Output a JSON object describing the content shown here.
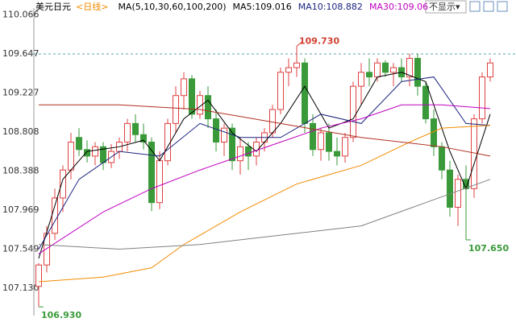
{
  "chart_data": {
    "type": "candlestick",
    "symbol": "美元日元",
    "period": "<日线>",
    "ma_title": "MA(5,10,30,60,100,200)",
    "ma_readouts": [
      {
        "label": "MA5:109.016",
        "color": "#000000"
      },
      {
        "label": "MA10:108.882",
        "color": "#1a237e"
      },
      {
        "label": "MA30:109.06",
        "color": "#c000c0"
      }
    ],
    "button": "不显示▾",
    "ylim": [
      106.88,
      110.14
    ],
    "yticks": [
      110.066,
      109.647,
      109.227,
      108.808,
      108.388,
      107.969,
      107.549,
      {
        "value": 107.13,
        "label": "107.130"
      }
    ],
    "dashed_line": 109.647,
    "up_color": "#e04040",
    "down_color": "#3a9a3a",
    "candles": {
      "open": [
        107.15,
        107.38,
        107.72,
        108.1,
        108.4,
        108.75,
        108.62,
        108.55,
        108.65,
        108.48,
        108.6,
        108.7,
        108.9,
        108.78,
        108.7,
        108.05,
        108.5,
        108.9,
        109.2,
        109.38,
        109.0,
        109.2,
        108.95,
        108.7,
        108.85,
        108.5,
        108.65,
        108.55,
        108.7,
        108.8,
        109.05,
        109.45,
        109.5,
        109.55,
        108.9,
        108.62,
        108.8,
        108.6,
        108.55,
        108.75,
        109.3,
        109.45,
        109.4,
        109.55,
        109.45,
        109.5,
        109.4,
        109.6,
        109.3,
        108.95,
        108.65,
        108.4,
        108.0,
        108.3,
        108.2,
        108.95,
        109.4
      ],
      "high": [
        107.4,
        107.8,
        108.2,
        108.45,
        108.8,
        108.85,
        108.72,
        108.7,
        108.7,
        108.68,
        108.75,
        108.95,
        109.0,
        108.9,
        108.75,
        108.6,
        108.95,
        109.3,
        109.45,
        109.42,
        109.25,
        109.3,
        109.05,
        108.9,
        108.9,
        108.75,
        108.7,
        108.75,
        108.85,
        109.1,
        109.5,
        109.6,
        109.73,
        109.6,
        109.0,
        108.85,
        108.9,
        108.75,
        108.8,
        109.35,
        109.55,
        109.6,
        109.6,
        109.58,
        109.55,
        109.6,
        109.65,
        109.65,
        109.35,
        109.05,
        108.7,
        108.5,
        108.35,
        108.45,
        109.0,
        109.45,
        109.6
      ],
      "low": [
        106.93,
        107.3,
        107.65,
        107.95,
        108.3,
        108.55,
        108.48,
        108.45,
        108.4,
        108.42,
        108.52,
        108.6,
        108.7,
        108.62,
        107.96,
        107.98,
        108.45,
        108.8,
        109.05,
        108.95,
        108.95,
        108.85,
        108.6,
        108.55,
        108.4,
        108.35,
        108.4,
        108.45,
        108.6,
        108.75,
        109.0,
        109.3,
        109.4,
        108.8,
        108.55,
        108.5,
        108.5,
        108.45,
        108.48,
        108.7,
        109.1,
        109.3,
        109.35,
        109.4,
        109.3,
        109.35,
        109.3,
        109.2,
        108.9,
        108.55,
        108.3,
        107.9,
        107.8,
        107.65,
        108.1,
        108.9,
        109.35
      ],
      "close": [
        107.38,
        107.72,
        108.1,
        108.4,
        108.7,
        108.62,
        108.55,
        108.65,
        108.48,
        108.6,
        108.7,
        108.9,
        108.78,
        108.7,
        108.05,
        108.5,
        108.9,
        109.2,
        109.38,
        109.0,
        109.2,
        108.95,
        108.7,
        108.85,
        108.5,
        108.65,
        108.55,
        108.7,
        108.8,
        109.05,
        109.45,
        109.5,
        109.55,
        108.9,
        108.62,
        108.8,
        108.6,
        108.55,
        108.75,
        109.3,
        109.45,
        109.4,
        109.55,
        109.45,
        109.5,
        109.4,
        109.6,
        109.3,
        108.95,
        108.65,
        108.4,
        108.0,
        108.3,
        108.2,
        108.95,
        109.4,
        109.55
      ]
    },
    "series": [
      {
        "name": "MA5",
        "color": "#000000",
        "x": [
          0,
          3,
          6,
          10,
          13,
          15,
          18,
          21,
          24,
          27,
          30,
          33,
          36,
          39,
          42,
          45,
          48,
          51,
          53,
          56
        ],
        "values": [
          107.45,
          108.3,
          108.6,
          108.65,
          108.72,
          108.5,
          108.95,
          109.15,
          108.8,
          108.6,
          108.9,
          109.3,
          108.85,
          108.95,
          109.4,
          109.45,
          109.35,
          108.6,
          108.2,
          109.0
        ]
      },
      {
        "name": "MA10",
        "color": "#1a237e",
        "x": [
          0,
          5,
          10,
          15,
          20,
          25,
          30,
          35,
          40,
          45,
          49,
          53,
          56
        ],
        "values": [
          107.55,
          108.3,
          108.6,
          108.55,
          108.9,
          108.75,
          108.75,
          109.0,
          108.9,
          109.35,
          109.4,
          108.9,
          108.88
        ]
      },
      {
        "name": "MA30",
        "color": "#c000c0",
        "x": [
          0,
          8,
          14,
          20,
          25,
          30,
          35,
          40,
          45,
          50,
          56
        ],
        "values": [
          107.5,
          107.95,
          108.2,
          108.4,
          108.55,
          108.7,
          108.85,
          108.95,
          109.1,
          109.1,
          109.06
        ]
      },
      {
        "name": "MA60",
        "color": "#f08c00",
        "x": [
          0,
          8,
          14,
          18,
          25,
          32,
          40,
          46,
          50,
          56
        ],
        "values": [
          107.2,
          107.25,
          107.35,
          107.6,
          107.95,
          108.25,
          108.45,
          108.7,
          108.85,
          108.88
        ]
      },
      {
        "name": "MA100",
        "color": "#b03020",
        "x": [
          0,
          10,
          20,
          30,
          40,
          50,
          56
        ],
        "values": [
          109.1,
          109.1,
          109.05,
          108.9,
          108.75,
          108.65,
          108.55
        ]
      },
      {
        "name": "MA200",
        "color": "#808080",
        "x": [
          0,
          10,
          20,
          30,
          40,
          48,
          56
        ],
        "values": [
          107.6,
          107.55,
          107.6,
          107.7,
          107.8,
          108.05,
          108.3
        ]
      }
    ],
    "annotations": [
      {
        "index": 32,
        "value": 109.73,
        "label": "109.730",
        "color": "#d04030"
      },
      {
        "index": 0,
        "value": 106.93,
        "label": "106.930",
        "color": "#3a9a3a"
      },
      {
        "index": 53,
        "value": 107.65,
        "label": "107.650",
        "color": "#3a9a3a"
      }
    ]
  }
}
